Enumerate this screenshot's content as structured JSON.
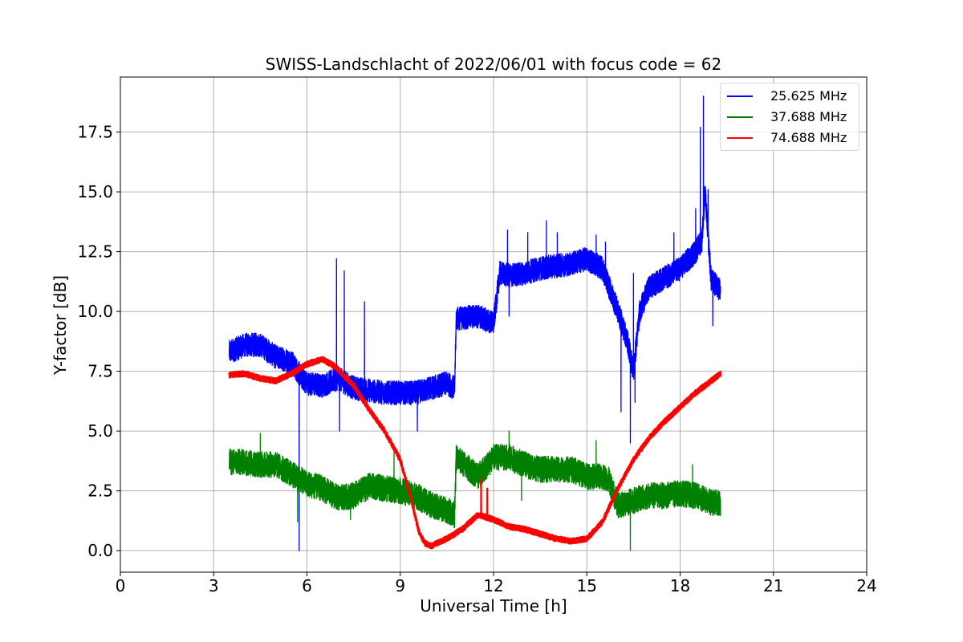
{
  "chart_data": {
    "type": "line",
    "title": "SWISS-Landschlacht of 2022/06/01 with focus code = 62",
    "xlabel": "Universal Time [h]",
    "ylabel": "Y-factor [dB]",
    "xlim": [
      0,
      24
    ],
    "ylim": [
      -0.9,
      19.8
    ],
    "xticks": [
      0,
      3,
      6,
      9,
      12,
      15,
      18,
      21,
      24
    ],
    "xtick_labels": [
      "0",
      "3",
      "6",
      "9",
      "12",
      "15",
      "18",
      "21",
      "24"
    ],
    "yticks": [
      0.0,
      2.5,
      5.0,
      7.5,
      10.0,
      12.5,
      15.0,
      17.5
    ],
    "ytick_labels": [
      "0.0",
      "2.5",
      "5.0",
      "7.5",
      "10.0",
      "12.5",
      "15.0",
      "17.5"
    ],
    "grid": true,
    "legend_position": "top-right",
    "series": [
      {
        "name": "25.625 MHz",
        "color": "#0000ff",
        "noise": 0.5,
        "x": [
          3.5,
          4.0,
          4.5,
          5.0,
          5.5,
          5.8,
          6.0,
          6.5,
          7.0,
          7.5,
          8.0,
          8.5,
          9.0,
          9.5,
          10.0,
          10.5,
          10.75,
          10.8,
          11.5,
          12.0,
          12.2,
          12.5,
          13.0,
          13.5,
          14.0,
          14.5,
          15.0,
          15.5,
          16.0,
          16.3,
          16.5,
          16.7,
          17.0,
          17.5,
          18.0,
          18.5,
          18.7,
          18.8,
          19.0,
          19.3
        ],
        "y": [
          8.3,
          8.6,
          8.6,
          8.1,
          7.9,
          7.3,
          7.0,
          6.9,
          7.2,
          6.8,
          6.7,
          6.6,
          6.6,
          6.6,
          6.8,
          7.0,
          6.8,
          9.7,
          9.8,
          9.5,
          11.6,
          11.5,
          11.6,
          11.8,
          11.9,
          12.0,
          12.2,
          11.8,
          10.0,
          8.8,
          7.5,
          10.0,
          11.0,
          11.4,
          11.8,
          12.5,
          13.0,
          15.0,
          11.3,
          10.9
        ],
        "spikes": [
          [
            5.75,
            0.0
          ],
          [
            6.95,
            12.2
          ],
          [
            7.05,
            10.2
          ],
          [
            7.2,
            11.7
          ],
          [
            7.85,
            10.4
          ],
          [
            12.45,
            13.4
          ],
          [
            13.1,
            13.3
          ],
          [
            13.7,
            13.8
          ],
          [
            14.05,
            13.3
          ],
          [
            15.3,
            13.2
          ],
          [
            15.6,
            12.9
          ],
          [
            16.4,
            4.5
          ],
          [
            16.55,
            6.2
          ],
          [
            17.8,
            13.3
          ],
          [
            18.5,
            14.3
          ],
          [
            18.65,
            17.7
          ],
          [
            18.75,
            19.0
          ],
          [
            18.9,
            15.1
          ],
          [
            19.05,
            9.4
          ],
          [
            7.05,
            5.0
          ],
          [
            12.5,
            9.8
          ],
          [
            16.1,
            5.8
          ],
          [
            16.5,
            11.6
          ],
          [
            9.55,
            5.0
          ]
        ]
      },
      {
        "name": "37.688 MHz",
        "color": "#008000",
        "noise": 0.55,
        "x": [
          3.5,
          4.0,
          4.5,
          5.0,
          5.5,
          6.0,
          6.5,
          7.0,
          7.5,
          8.0,
          8.5,
          9.0,
          9.5,
          10.0,
          10.5,
          10.75,
          10.8,
          11.5,
          12.0,
          12.5,
          13.0,
          13.5,
          14.0,
          14.5,
          15.0,
          15.5,
          15.7,
          16.0,
          16.5,
          17.0,
          17.5,
          18.0,
          18.5,
          19.0,
          19.3
        ],
        "y": [
          3.7,
          3.7,
          3.6,
          3.6,
          3.2,
          2.8,
          2.6,
          2.2,
          2.3,
          2.7,
          2.6,
          2.5,
          2.3,
          1.9,
          1.7,
          1.5,
          3.9,
          3.1,
          3.9,
          3.9,
          3.6,
          3.4,
          3.4,
          3.4,
          3.1,
          3.1,
          3.0,
          1.9,
          2.1,
          2.3,
          2.3,
          2.4,
          2.3,
          2.0,
          2.0
        ],
        "spikes": [
          [
            4.5,
            4.9
          ],
          [
            16.4,
            0.0
          ],
          [
            5.7,
            1.2
          ],
          [
            12.5,
            5.0
          ],
          [
            15.3,
            4.6
          ],
          [
            8.8,
            4.1
          ],
          [
            18.4,
            3.6
          ],
          [
            7.4,
            1.3
          ],
          [
            12.9,
            2.1
          ]
        ]
      },
      {
        "name": "74.688 MHz",
        "color": "#ff0000",
        "noise": 0.12,
        "x": [
          3.5,
          4.0,
          4.5,
          5.0,
          5.5,
          6.0,
          6.5,
          6.9,
          7.5,
          8.0,
          8.5,
          9.0,
          9.3,
          9.6,
          9.8,
          10.0,
          10.5,
          11.0,
          11.5,
          12.0,
          12.5,
          13.0,
          13.5,
          14.0,
          14.5,
          15.0,
          15.5,
          16.0,
          16.5,
          17.0,
          17.5,
          18.0,
          18.5,
          19.0,
          19.3
        ],
        "y": [
          7.35,
          7.4,
          7.2,
          7.1,
          7.4,
          7.8,
          8.0,
          7.7,
          6.9,
          5.9,
          5.0,
          3.8,
          2.4,
          0.8,
          0.3,
          0.2,
          0.5,
          0.9,
          1.5,
          1.3,
          1.0,
          0.9,
          0.7,
          0.5,
          0.4,
          0.5,
          1.2,
          2.6,
          3.8,
          4.7,
          5.4,
          6.0,
          6.6,
          7.1,
          7.4
        ],
        "spikes": [
          [
            11.6,
            3.0
          ],
          [
            11.8,
            2.6
          ]
        ]
      }
    ]
  }
}
